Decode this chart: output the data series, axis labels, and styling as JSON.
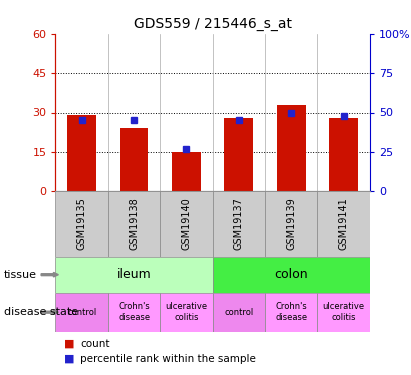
{
  "title": "GDS559 / 215446_s_at",
  "samples": [
    "GSM19135",
    "GSM19138",
    "GSM19140",
    "GSM19137",
    "GSM19139",
    "GSM19141"
  ],
  "counts": [
    29.0,
    24.0,
    15.0,
    28.0,
    33.0,
    28.0
  ],
  "percentiles": [
    45.0,
    45.0,
    27.0,
    45.0,
    50.0,
    48.0
  ],
  "ylim_left": [
    0,
    60
  ],
  "ylim_right": [
    0,
    100
  ],
  "yticks_left": [
    0,
    15,
    30,
    45,
    60
  ],
  "yticks_right": [
    0,
    25,
    50,
    75,
    100
  ],
  "ytick_labels_left": [
    "0",
    "15",
    "30",
    "45",
    "60"
  ],
  "ytick_labels_right": [
    "0",
    "25",
    "50",
    "75",
    "100%"
  ],
  "bar_color": "#cc1100",
  "dot_color": "#2222cc",
  "tissue_colors": [
    "#bbffbb",
    "#44ee44"
  ],
  "disease_colors_control": "#ee88ee",
  "disease_colors_other": "#ff99ff",
  "legend_count_color": "#cc1100",
  "legend_pct_color": "#2222cc",
  "left_tick_color": "#cc1100",
  "right_tick_color": "#0000cc",
  "bar_width": 0.55,
  "sample_label_fontsize": 7.5,
  "title_fontsize": 10
}
